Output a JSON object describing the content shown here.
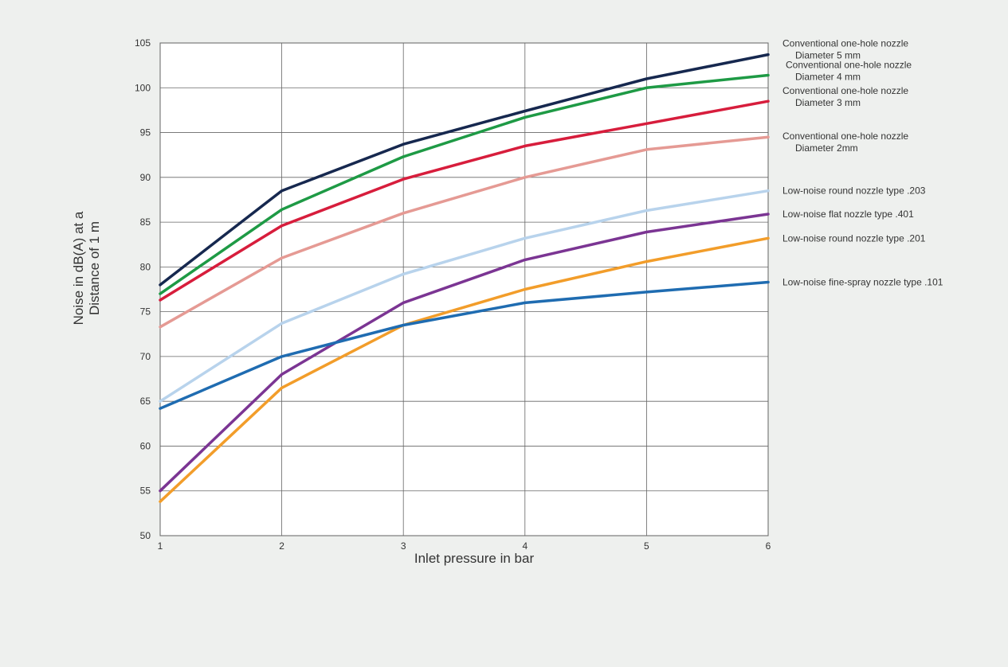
{
  "chart_data": {
    "type": "line",
    "xlabel": "Inlet pressure in bar",
    "ylabel_lines": [
      "Noise in dB(A) at a",
      "Distance of 1 m"
    ],
    "x": [
      1,
      2,
      3,
      4,
      5,
      6
    ],
    "xlim": [
      1,
      6
    ],
    "ylim": [
      50,
      105
    ],
    "y_ticks": [
      50,
      55,
      60,
      65,
      70,
      75,
      80,
      85,
      90,
      95,
      100,
      105
    ],
    "x_ticks": [
      1,
      2,
      3,
      4,
      5,
      6
    ],
    "grid": true,
    "legend_placement": "right",
    "series": [
      {
        "name": "Conventional one-hole nozzle Diameter 5 mm",
        "legend_lines": [
          "Conventional one-hole nozzle",
          "Diameter 5 mm"
        ],
        "color": "#16284f",
        "values": [
          78.0,
          88.5,
          93.7,
          97.4,
          101.0,
          103.7
        ]
      },
      {
        "name": "Conventional one-hole nozzle Diameter 4 mm",
        "legend_lines": [
          "Conventional one-hole nozzle",
          "Diameter 4 mm"
        ],
        "color": "#1e9a45",
        "values": [
          77.0,
          86.4,
          92.3,
          96.7,
          100.0,
          101.4
        ]
      },
      {
        "name": "Conventional one-hole nozzle Diameter 3 mm",
        "legend_lines": [
          "Conventional one-hole nozzle",
          "Diameter 3 mm"
        ],
        "color": "#d71d3c",
        "values": [
          76.3,
          84.6,
          89.8,
          93.5,
          96.0,
          98.5
        ]
      },
      {
        "name": "Conventional one-hole nozzle Diameter 2mm",
        "legend_lines": [
          "Conventional one-hole nozzle",
          "Diameter 2mm"
        ],
        "color": "#e59a94",
        "values": [
          73.3,
          81.0,
          86.0,
          90.0,
          93.1,
          94.5
        ]
      },
      {
        "name": "Low-noise round nozzle type .203",
        "legend_lines": [
          "Low-noise round nozzle type .203"
        ],
        "color": "#b8d3ec",
        "values": [
          65.0,
          73.7,
          79.2,
          83.2,
          86.3,
          88.5
        ]
      },
      {
        "name": "Low-noise flat nozzle type .401",
        "legend_lines": [
          "Low-noise flat nozzle type .401"
        ],
        "color": "#7b3593",
        "values": [
          55.0,
          68.0,
          76.0,
          80.8,
          83.9,
          85.9
        ]
      },
      {
        "name": "Low-noise round nozzle type .201",
        "legend_lines": [
          "Low-noise round nozzle type .201"
        ],
        "color": "#f29d2a",
        "values": [
          53.8,
          66.5,
          73.5,
          77.5,
          80.6,
          83.2
        ]
      },
      {
        "name": "Low-noise fine-spray nozzle type .101",
        "legend_lines": [
          "Low-noise fine-spray nozzle type .101"
        ],
        "color": "#1f6cb1",
        "values": [
          64.2,
          70.0,
          73.5,
          76.0,
          77.2,
          78.3
        ]
      }
    ]
  }
}
